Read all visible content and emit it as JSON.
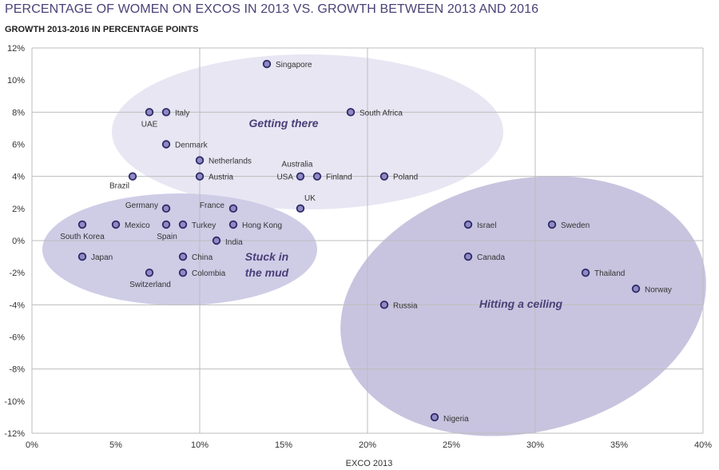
{
  "title": "PERCENTAGE OF WOMEN ON EXCOS IN 2013 VS. GROWTH BETWEEN 2013 AND 2016",
  "subtitle": "GROWTH 2013-2016 IN PERCENTAGE POINTS",
  "colors": {
    "title": "#4a4278",
    "point_fill": "#8f89c4",
    "point_stroke": "#2e2a66",
    "ellipse_light": "#e8e6f3",
    "ellipse_mid": "#cfcce6",
    "ellipse_dark": "#c8c4df",
    "grid": "#bdbdbd"
  },
  "chart_data": {
    "type": "scatter",
    "title": "PERCENTAGE OF WOMEN ON EXCOS IN 2013 VS. GROWTH BETWEEN 2013 AND 2016",
    "xlabel": "EXCO 2013",
    "ylabel": "GROWTH 2013-2016 IN PERCENTAGE POINTS",
    "xlim": [
      0,
      40
    ],
    "ylim": [
      -12,
      12
    ],
    "x_ticks": [
      "0%",
      "5%",
      "10%",
      "15%",
      "20%",
      "25%",
      "30%",
      "35%",
      "40%"
    ],
    "y_ticks": [
      "12%",
      "10%",
      "8%",
      "6%",
      "4%",
      "2%",
      "0%",
      "-2%",
      "-4%",
      "-6%",
      "-8%",
      "-10%",
      "-12%"
    ],
    "grid": true,
    "points": [
      {
        "label": "Singapore",
        "x": 14,
        "y": 11
      },
      {
        "label": "UAE",
        "x": 7,
        "y": 8
      },
      {
        "label": "Italy",
        "x": 8,
        "y": 8
      },
      {
        "label": "South Africa",
        "x": 19,
        "y": 8
      },
      {
        "label": "Denmark",
        "x": 8,
        "y": 6
      },
      {
        "label": "Netherlands",
        "x": 10,
        "y": 5
      },
      {
        "label": "Brazil",
        "x": 6,
        "y": 4
      },
      {
        "label": "Austria",
        "x": 10,
        "y": 4
      },
      {
        "label": "Australia",
        "x": 16,
        "y": 4
      },
      {
        "label": "USA",
        "x": 16,
        "y": 4
      },
      {
        "label": "Finland",
        "x": 17,
        "y": 4
      },
      {
        "label": "Poland",
        "x": 21,
        "y": 4
      },
      {
        "label": "Germany",
        "x": 8,
        "y": 2
      },
      {
        "label": "France",
        "x": 12,
        "y": 2
      },
      {
        "label": "UK",
        "x": 16,
        "y": 2
      },
      {
        "label": "South Korea",
        "x": 3,
        "y": 1
      },
      {
        "label": "Mexico",
        "x": 5,
        "y": 1
      },
      {
        "label": "Spain",
        "x": 8,
        "y": 1
      },
      {
        "label": "Turkey",
        "x": 9,
        "y": 1
      },
      {
        "label": "Hong Kong",
        "x": 12,
        "y": 1
      },
      {
        "label": "India",
        "x": 11,
        "y": 0
      },
      {
        "label": "Japan",
        "x": 3,
        "y": -1
      },
      {
        "label": "China",
        "x": 9,
        "y": -1
      },
      {
        "label": "Switzerland",
        "x": 7,
        "y": -2
      },
      {
        "label": "Colombia",
        "x": 9,
        "y": -2
      },
      {
        "label": "Israel",
        "x": 26,
        "y": 1
      },
      {
        "label": "Sweden",
        "x": 31,
        "y": 1
      },
      {
        "label": "Canada",
        "x": 26,
        "y": -1
      },
      {
        "label": "Thailand",
        "x": 33,
        "y": -2
      },
      {
        "label": "Norway",
        "x": 36,
        "y": -3
      },
      {
        "label": "Russia",
        "x": 21,
        "y": -4
      },
      {
        "label": "Nigeria",
        "x": 24,
        "y": -11
      }
    ],
    "annotations": [
      "Getting there",
      "Stuck in the mud",
      "Hitting a ceiling"
    ]
  }
}
